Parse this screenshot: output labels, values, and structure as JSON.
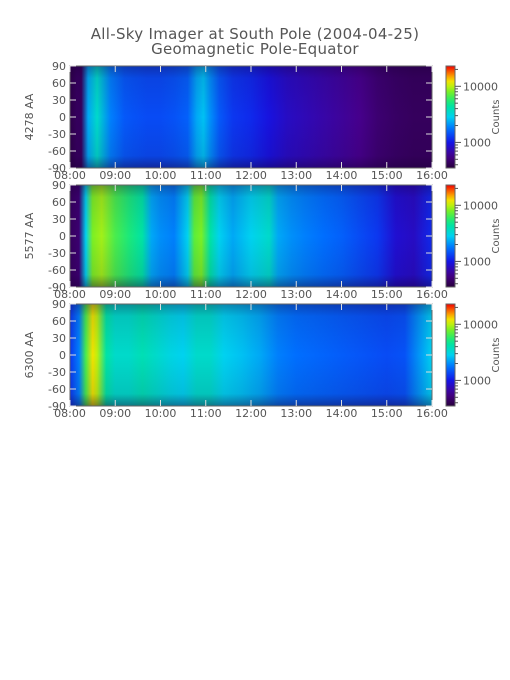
{
  "figure": {
    "title": "All-Sky Imager at South Pole (2004-04-25)",
    "subtitle": "Geomagnetic Pole-Equator"
  },
  "chart_data": [
    {
      "type": "heatmap",
      "ylabel": "4278 AA",
      "colorbar_label": "Counts",
      "colorbar_ticks": [
        "10000",
        "1000"
      ],
      "colorscale": "log",
      "x_ticks": [
        "08:00",
        "09:00",
        "10:00",
        "11:00",
        "12:00",
        "13:00",
        "14:00",
        "15:00",
        "16:00"
      ],
      "y_ticks": [
        "90",
        "60",
        "30",
        "0",
        "-30",
        "-60",
        "-90"
      ],
      "xlim": [
        8,
        16
      ],
      "ylim": [
        -90,
        90
      ],
      "x_hours": [
        8.0,
        8.15,
        8.25,
        8.4,
        8.6,
        8.9,
        9.2,
        9.4,
        9.7,
        10.0,
        10.3,
        10.6,
        10.8,
        10.95,
        11.1,
        11.3,
        11.6,
        12.0,
        12.4,
        12.8,
        13.2,
        13.6,
        14.0,
        14.4,
        14.8,
        15.2,
        15.6,
        16.0
      ],
      "intensity": [
        0.02,
        0.05,
        0.05,
        0.45,
        0.55,
        0.4,
        0.35,
        0.34,
        0.33,
        0.33,
        0.34,
        0.36,
        0.45,
        0.48,
        0.42,
        0.35,
        0.3,
        0.28,
        0.24,
        0.2,
        0.18,
        0.16,
        0.14,
        0.12,
        0.08,
        0.06,
        0.05,
        0.05
      ]
    },
    {
      "type": "heatmap",
      "ylabel": "5577 AA",
      "colorbar_label": "Counts",
      "colorbar_ticks": [
        "10000",
        "1000"
      ],
      "colorscale": "log",
      "x_ticks": [
        "08:00",
        "09:00",
        "10:00",
        "11:00",
        "12:00",
        "13:00",
        "14:00",
        "15:00",
        "16:00"
      ],
      "y_ticks": [
        "90",
        "60",
        "30",
        "0",
        "-30",
        "-60",
        "-90"
      ],
      "xlim": [
        8,
        16
      ],
      "ylim": [
        -90,
        90
      ],
      "x_hours": [
        8.0,
        8.2,
        8.35,
        8.5,
        8.7,
        9.0,
        9.3,
        9.6,
        9.8,
        10.0,
        10.3,
        10.6,
        10.75,
        10.9,
        11.1,
        11.3,
        11.6,
        12.0,
        12.4,
        12.6,
        12.9,
        13.2,
        13.6,
        14.0,
        14.4,
        14.8,
        15.2,
        15.6,
        16.0
      ],
      "intensity": [
        0.05,
        0.08,
        0.5,
        0.75,
        0.78,
        0.7,
        0.65,
        0.6,
        0.45,
        0.42,
        0.4,
        0.5,
        0.72,
        0.75,
        0.6,
        0.5,
        0.45,
        0.5,
        0.55,
        0.45,
        0.42,
        0.4,
        0.38,
        0.36,
        0.33,
        0.3,
        0.22,
        0.2,
        0.28
      ]
    },
    {
      "type": "heatmap",
      "ylabel": "6300 AA",
      "colorbar_label": "Counts",
      "colorbar_ticks": [
        "10000",
        "1000"
      ],
      "colorscale": "log",
      "x_ticks": [
        "08:00",
        "09:00",
        "10:00",
        "11:00",
        "12:00",
        "13:00",
        "14:00",
        "15:00",
        "16:00"
      ],
      "y_ticks": [
        "90",
        "60",
        "30",
        "0",
        "-30",
        "-60",
        "-90"
      ],
      "xlim": [
        8,
        16
      ],
      "ylim": [
        -90,
        90
      ],
      "x_hours": [
        8.0,
        8.2,
        8.35,
        8.5,
        8.6,
        8.8,
        9.0,
        9.3,
        9.6,
        9.9,
        10.2,
        10.5,
        10.8,
        11.1,
        11.4,
        11.8,
        12.2,
        12.6,
        13.0,
        13.4,
        13.8,
        14.2,
        14.6,
        15.0,
        15.4,
        15.8,
        16.0
      ],
      "intensity": [
        0.3,
        0.4,
        0.7,
        0.85,
        0.8,
        0.6,
        0.55,
        0.55,
        0.58,
        0.55,
        0.52,
        0.5,
        0.55,
        0.55,
        0.5,
        0.48,
        0.45,
        0.4,
        0.38,
        0.37,
        0.36,
        0.35,
        0.34,
        0.33,
        0.34,
        0.45,
        0.5
      ]
    }
  ]
}
